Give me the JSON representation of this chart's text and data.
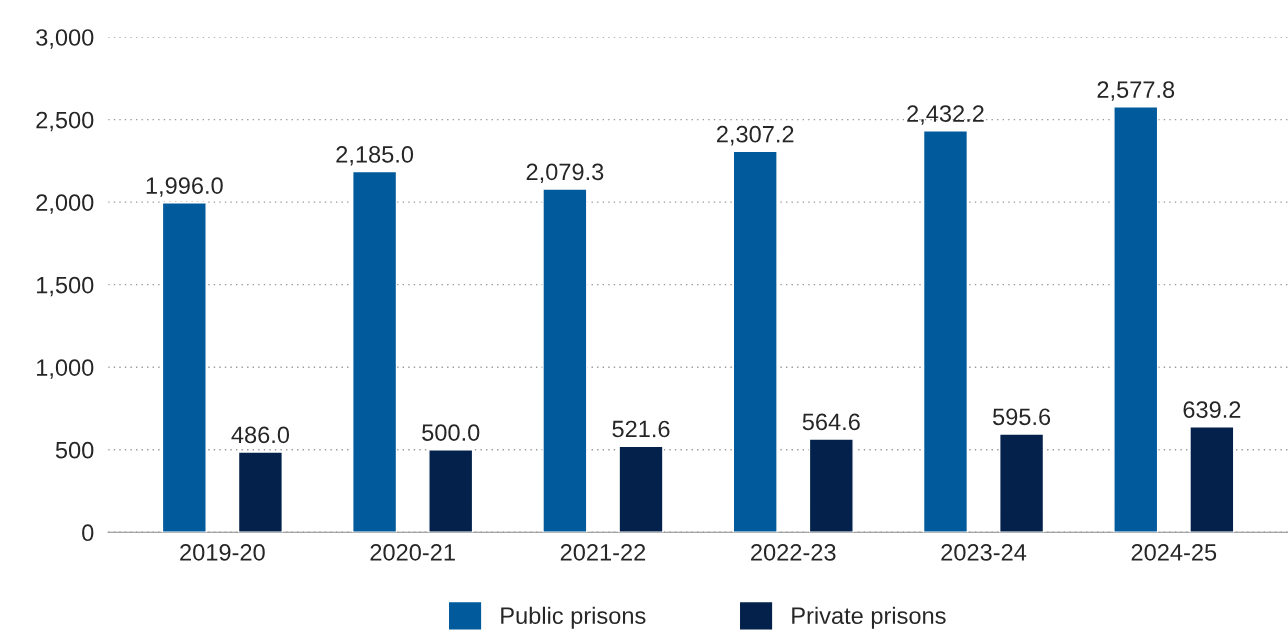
{
  "chart_data": {
    "type": "bar",
    "categories": [
      "2019-20",
      "2020-21",
      "2021-22",
      "2022-23",
      "2023-24",
      "2024-25"
    ],
    "series": [
      {
        "name": "Public prisons",
        "color": "#005a9c",
        "values": [
          1996.0,
          2185.0,
          2079.3,
          2307.2,
          2432.2,
          2577.8
        ],
        "value_labels": [
          "1,996.0",
          "2,185.0",
          "2,079.3",
          "2,307.2",
          "2,432.2",
          "2,577.8"
        ]
      },
      {
        "name": "Private prisons",
        "color": "#03214a",
        "values": [
          486.0,
          500.0,
          521.6,
          564.6,
          595.6,
          639.2
        ],
        "value_labels": [
          "486.0",
          "500.0",
          "521.6",
          "564.6",
          "595.6",
          "639.2"
        ]
      }
    ],
    "ylim": [
      0,
      3000
    ],
    "yticks": [
      0,
      500,
      {
        "value": 1000,
        "label": "1,000"
      },
      {
        "value": 1500,
        "label": "1,500"
      },
      {
        "value": 2000,
        "label": "2,000"
      },
      {
        "value": 2500,
        "label": "2,500"
      },
      {
        "value": 3000,
        "label": "3,000"
      }
    ],
    "grid": "y",
    "legend": "bottom"
  }
}
